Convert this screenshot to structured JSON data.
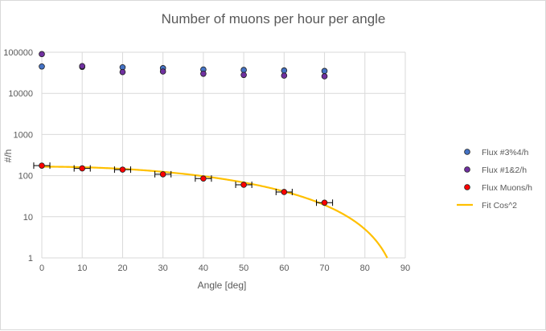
{
  "chart_data": {
    "type": "scatter",
    "title": "Number of muons per hour per angle",
    "xlabel": "Angle [deg]",
    "ylabel": "#/h",
    "xlim": [
      0,
      90
    ],
    "ylim": [
      1,
      100000
    ],
    "yscale": "log",
    "grid": true,
    "legend_position": "right",
    "x_ticks": [
      "0",
      "10",
      "20",
      "30",
      "40",
      "50",
      "60",
      "70",
      "80",
      "90"
    ],
    "y_ticks": [
      "1",
      "10",
      "100",
      "1000",
      "10000",
      "100000"
    ],
    "series": [
      {
        "name": "Flux #3%4/h",
        "kind": "points",
        "color": "#4472c4",
        "x": [
          0,
          10,
          20,
          30,
          40,
          50,
          60,
          70
        ],
        "y": [
          45000,
          44000,
          43000,
          41000,
          38000,
          37000,
          36000,
          35000
        ]
      },
      {
        "name": "Flux #1&2/h",
        "kind": "points",
        "color": "#7030a0",
        "x": [
          0,
          10,
          20,
          30,
          40,
          50,
          60,
          70
        ],
        "y": [
          90000,
          46000,
          33000,
          34000,
          30000,
          28000,
          27000,
          26000
        ]
      },
      {
        "name": "Flux Muons/h",
        "kind": "points",
        "color": "#ff0000",
        "x": [
          0,
          10,
          20,
          30,
          40,
          50,
          60,
          70
        ],
        "y": [
          175,
          150,
          140,
          108,
          85,
          60,
          40,
          22
        ],
        "x_error": [
          2,
          2,
          2,
          2,
          2,
          2,
          2,
          2
        ]
      },
      {
        "name": "Fit Cos^2",
        "kind": "line",
        "color": "#ffc000",
        "amplitude": 165
      }
    ]
  }
}
